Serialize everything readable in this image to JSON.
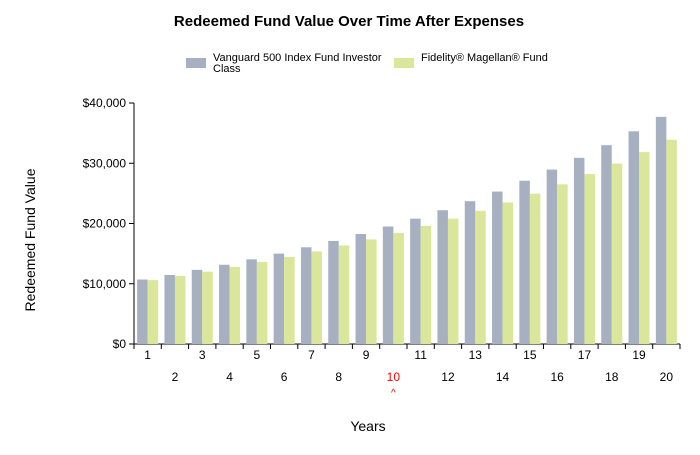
{
  "chart_data": {
    "type": "bar",
    "title": "Redeemed Fund Value Over Time After Expenses",
    "xlabel": "Years",
    "ylabel": "Redeemed Fund Value",
    "ylim": [
      0,
      40000
    ],
    "yticks": [
      0,
      10000,
      20000,
      30000,
      40000
    ],
    "ytick_labels": [
      "$0",
      "$10,000",
      "$20,000",
      "$30,000",
      "$40,000"
    ],
    "categories": [
      "1",
      "2",
      "3",
      "4",
      "5",
      "6",
      "7",
      "8",
      "9",
      "10",
      "11",
      "12",
      "13",
      "14",
      "15",
      "16",
      "17",
      "18",
      "19",
      "20"
    ],
    "highlight_category": "10",
    "highlight_marker": "^",
    "grid": false,
    "legend_position": "top-center",
    "series": [
      {
        "name": "Vanguard 500 Index Fund Investor Class",
        "legend_lines": [
          "Vanguard 500 Index Fund Investor",
          "Class"
        ],
        "color": "#a6b0c0",
        "values": [
          10700,
          11450,
          12300,
          13150,
          14050,
          15000,
          16050,
          17100,
          18250,
          19500,
          20800,
          22200,
          23700,
          25300,
          27100,
          28950,
          30900,
          33000,
          35300,
          37700
        ]
      },
      {
        "name": "Fidelity® Magellan® Fund",
        "legend_lines": [
          "Fidelity® Magellan® Fund"
        ],
        "color": "#dae699",
        "values": [
          10600,
          11300,
          12000,
          12800,
          13600,
          14450,
          15350,
          16350,
          17350,
          18450,
          19600,
          20800,
          22100,
          23500,
          24950,
          26500,
          28200,
          29950,
          31850,
          33900
        ]
      }
    ],
    "colors": {
      "highlight_text": "#ff0000",
      "axis": "#000000"
    }
  }
}
